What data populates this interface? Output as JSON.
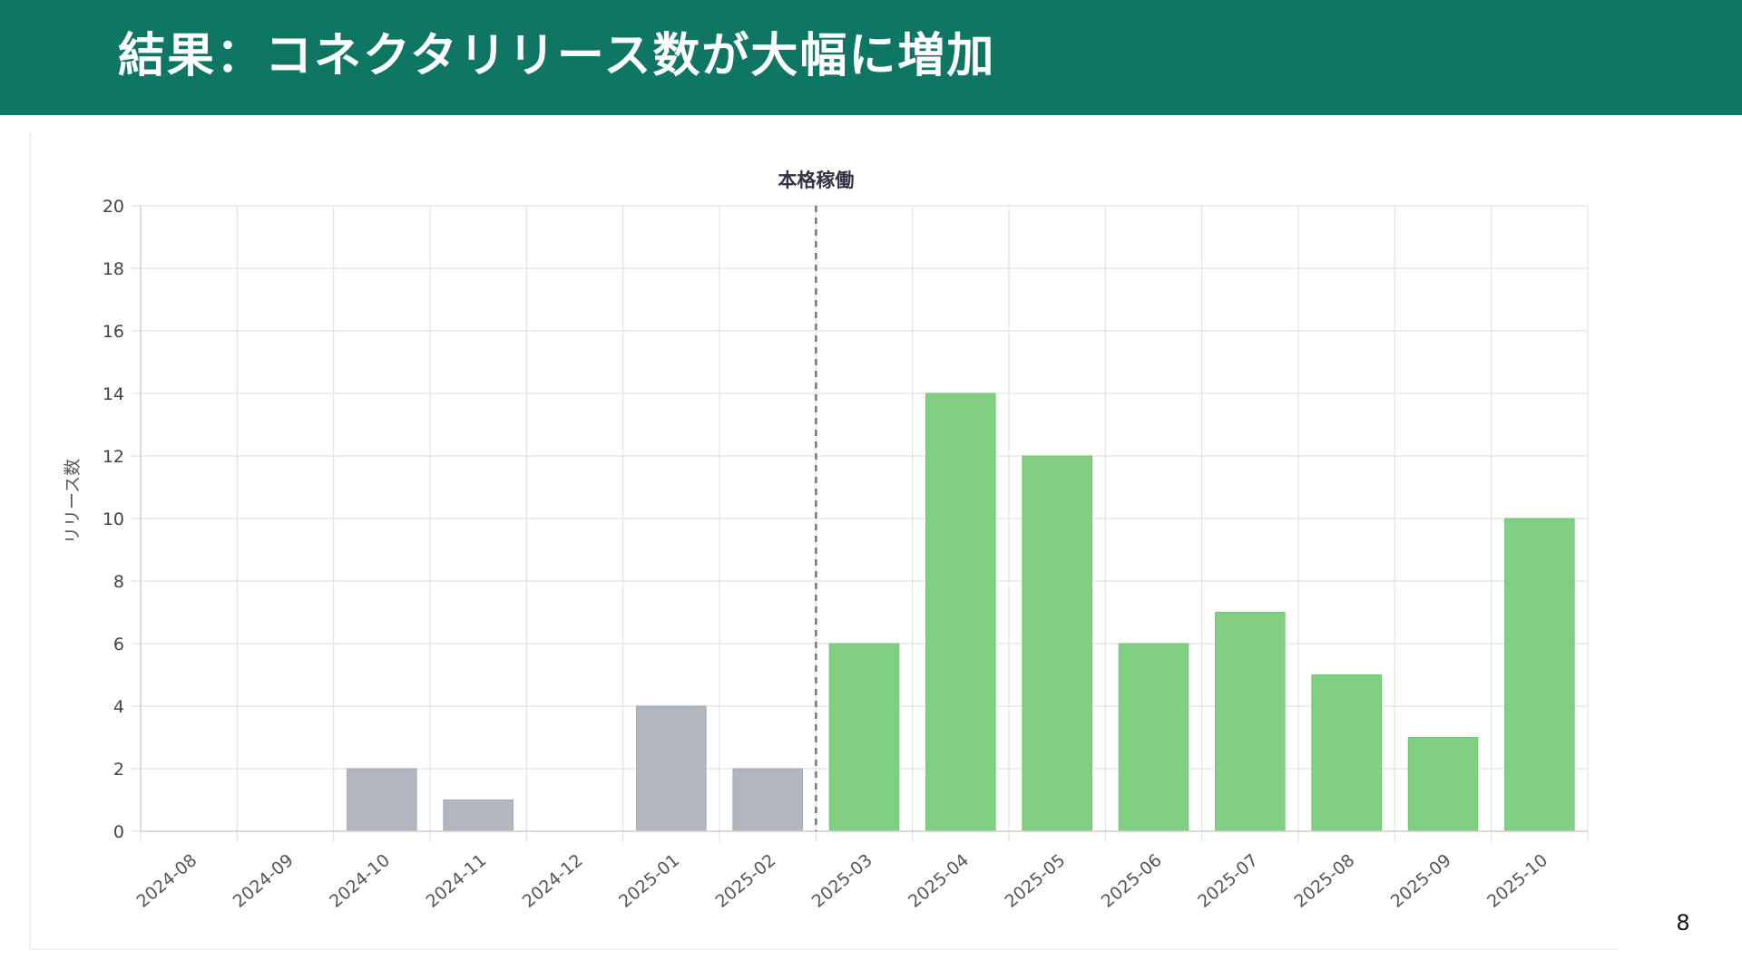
{
  "slide": {
    "title": "結果：コネクタリリース数が大幅に増加",
    "page_number": "8"
  },
  "colors": {
    "header_bg": "#0f7663",
    "bar_before": "#b1b6bf",
    "bar_after": "#80cf83",
    "grid": "#e2e2e2",
    "marker_line": "#777777"
  },
  "chart_data": {
    "type": "bar",
    "title": "",
    "xlabel": "",
    "ylabel": "リリース数",
    "ylim": [
      0,
      20
    ],
    "yticks": [
      0,
      2,
      4,
      6,
      8,
      10,
      12,
      14,
      16,
      18,
      20
    ],
    "grid": true,
    "categories": [
      "2024-08",
      "2024-09",
      "2024-10",
      "2024-11",
      "2024-12",
      "2025-01",
      "2025-02",
      "2025-03",
      "2025-04",
      "2025-05",
      "2025-06",
      "2025-07",
      "2025-08",
      "2025-09",
      "2025-10"
    ],
    "values": [
      0,
      0,
      2,
      1,
      0,
      4,
      2,
      6,
      14,
      12,
      6,
      7,
      5,
      3,
      10
    ],
    "annotation": {
      "label": "本格稼働",
      "at_category": "2025-03",
      "style": "dashed vertical line",
      "bars_before_color": "gray",
      "bars_after_color": "green"
    }
  }
}
